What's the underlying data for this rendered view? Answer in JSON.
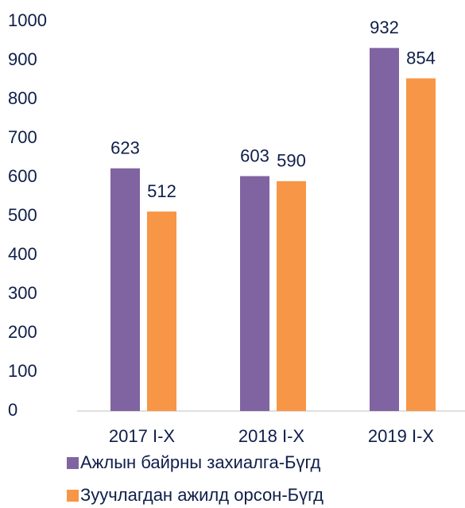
{
  "chart_data": {
    "type": "bar",
    "categories": [
      "2017 I-X",
      "2018 I-X",
      "2019 I-X"
    ],
    "series": [
      {
        "name": "Ажлын байрны захиалга-Бүгд",
        "color": "#8064a2",
        "values": [
          623,
          603,
          932
        ]
      },
      {
        "name": "Зуучлагдан ажилд орсон-Бүгд",
        "color": "#f79646",
        "values": [
          512,
          590,
          854
        ]
      }
    ],
    "ylim": [
      0,
      1000
    ],
    "yticks": [
      0,
      100,
      200,
      300,
      400,
      500,
      600,
      700,
      800,
      900,
      1000
    ],
    "grid": false
  }
}
